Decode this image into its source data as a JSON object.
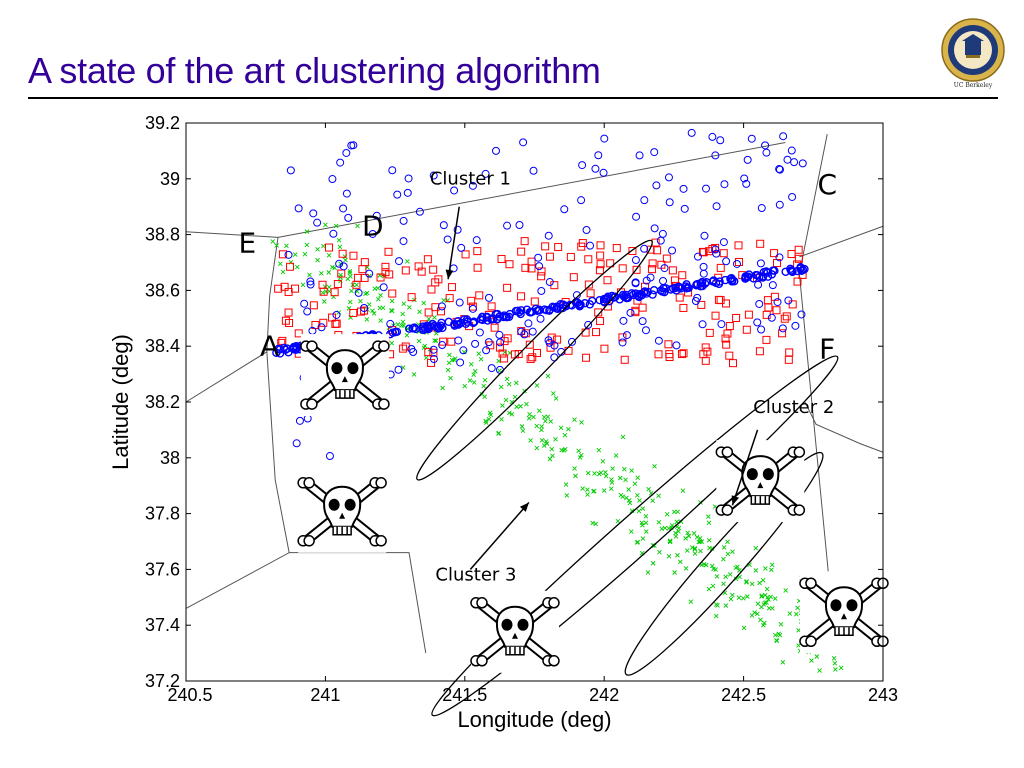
{
  "slide": {
    "title": "A state of the art clustering algorithm",
    "logo_text": "UC Berkeley"
  },
  "colors": {
    "title": "#330099",
    "blue_series": "#0000ff",
    "red_series": "#ff0000",
    "green_series": "#00cc00",
    "region_lines": "#555555"
  },
  "chart_data": {
    "type": "scatter",
    "title": "",
    "xlabel": "Longitude (deg)",
    "ylabel": "Latitude (deg)",
    "xlim": [
      240.5,
      243
    ],
    "ylim": [
      37.2,
      39.2
    ],
    "x_ticks": [
      240.5,
      241,
      241.5,
      242,
      242.5,
      243
    ],
    "x_tick_labels": [
      "240.5",
      "241",
      "241.5",
      "242",
      "242.5",
      "243"
    ],
    "y_ticks": [
      37.2,
      37.4,
      37.6,
      37.8,
      38,
      38.2,
      38.4,
      38.6,
      38.8,
      39,
      39.2
    ],
    "y_tick_labels": [
      "37.2",
      "37.4",
      "37.6",
      "37.8",
      "38",
      "38.2",
      "38.4",
      "38.6",
      "38.8",
      "39",
      "39.2"
    ],
    "grid": false,
    "region_labels": [
      {
        "text": "A",
        "x": 240.8,
        "y": 38.4
      },
      {
        "text": "C",
        "x": 242.8,
        "y": 38.98
      },
      {
        "text": "D",
        "x": 241.17,
        "y": 38.83
      },
      {
        "text": "E",
        "x": 240.72,
        "y": 38.77
      },
      {
        "text": "F",
        "x": 242.8,
        "y": 38.39
      }
    ],
    "region_boundaries": [
      [
        [
          240.5,
          38.81
        ],
        [
          240.83,
          38.79
        ],
        [
          240.8,
          38.58
        ]
      ],
      [
        [
          240.83,
          38.79
        ],
        [
          242.65,
          39.13
        ]
      ],
      [
        [
          242.8,
          39.16
        ],
        [
          242.7,
          38.66
        ],
        [
          242.83,
          37.32
        ]
      ],
      [
        [
          240.8,
          38.58
        ],
        [
          240.79,
          38.38
        ],
        [
          240.5,
          38.2
        ]
      ],
      [
        [
          240.79,
          38.38
        ],
        [
          240.82,
          37.92
        ],
        [
          240.87,
          37.66
        ],
        [
          240.5,
          37.46
        ]
      ],
      [
        [
          242.7,
          38.72
        ],
        [
          243,
          38.83
        ]
      ],
      [
        [
          242.72,
          38.2
        ],
        [
          242.76,
          38.12
        ],
        [
          242.92,
          38.05
        ],
        [
          243,
          38.02
        ]
      ],
      [
        [
          240.87,
          37.66
        ],
        [
          241.3,
          37.66
        ],
        [
          241.36,
          37.3
        ]
      ]
    ],
    "clusters": [
      {
        "name": "Cluster 1",
        "center": [
          241.75,
          38.35
        ],
        "angle_deg": -45.5,
        "rx": 0.6,
        "ry": 0.055,
        "label": {
          "x": 241.52,
          "y": 38.98
        },
        "arrow_from": [
          241.48,
          38.9
        ],
        "arrow_to": [
          241.44,
          38.64
        ]
      },
      {
        "name": "Cluster 2",
        "center": [
          242.43,
          37.62
        ],
        "angle_deg": -48.5,
        "rx": 0.53,
        "ry": 0.065,
        "label": {
          "x": 242.68,
          "y": 38.16
        },
        "arrow_from": [
          242.55,
          38.1
        ],
        "arrow_to": [
          242.46,
          37.83
        ]
      },
      {
        "name": "Cluster 3",
        "center": [
          242.11,
          37.72
        ],
        "angle_deg": -41.5,
        "rx": 0.97,
        "ry": 0.07,
        "label": {
          "x": 241.54,
          "y": 37.56
        },
        "arrow_from": [
          241.52,
          37.6
        ],
        "arrow_to": [
          241.73,
          37.84
        ]
      }
    ],
    "skulls": [
      {
        "x": 241.07,
        "y": 38.3
      },
      {
        "x": 241.06,
        "y": 37.81
      },
      {
        "x": 242.56,
        "y": 37.92
      },
      {
        "x": 242.86,
        "y": 37.45
      },
      {
        "x": 241.68,
        "y": 37.38
      }
    ],
    "series": [
      {
        "marker": "circle-blue",
        "band": {
          "x0": 240.82,
          "x1": 242.72,
          "y0": 38.38,
          "y1": 38.68,
          "spread": 0.01,
          "n": 260
        },
        "extra": {
          "x0": 240.85,
          "x1": 242.72,
          "y0": 37.95,
          "y1": 39.17,
          "above_band": true,
          "n": 190
        }
      },
      {
        "marker": "square-red",
        "box": {
          "x0": 240.83,
          "x1": 242.72,
          "y0": 38.26,
          "y1": 38.78,
          "n": 230
        }
      },
      {
        "marker": "x-green",
        "diag": {
          "x0": 240.9,
          "y0": 38.78,
          "x1": 242.82,
          "y1": 37.28,
          "spread": 0.12,
          "n": 420
        }
      }
    ]
  }
}
